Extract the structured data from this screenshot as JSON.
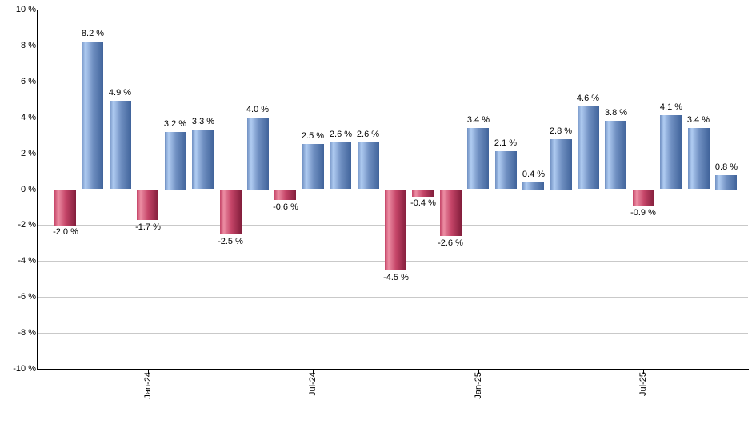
{
  "chart_data": {
    "type": "bar",
    "title": "",
    "xlabel": "",
    "ylabel": "",
    "ylim": [
      -10,
      10
    ],
    "grid": "horizontal",
    "legend": "none",
    "bars": [
      {
        "value": -2.0,
        "label": "-2.0 %"
      },
      {
        "value": 8.2,
        "label": "8.2 %"
      },
      {
        "value": 4.9,
        "label": "4.9 %"
      },
      {
        "value": -1.7,
        "label": "-1.7 %"
      },
      {
        "value": 3.2,
        "label": "3.2 %"
      },
      {
        "value": 3.3,
        "label": "3.3 %"
      },
      {
        "value": -2.5,
        "label": "-2.5 %"
      },
      {
        "value": 4.0,
        "label": "4.0 %"
      },
      {
        "value": -0.6,
        "label": "-0.6 %"
      },
      {
        "value": 2.5,
        "label": "2.5 %"
      },
      {
        "value": 2.6,
        "label": "2.6 %"
      },
      {
        "value": 2.6,
        "label": "2.6 %"
      },
      {
        "value": -4.5,
        "label": "-4.5 %"
      },
      {
        "value": -0.4,
        "label": "-0.4 %"
      },
      {
        "value": -2.6,
        "label": "-2.6 %"
      },
      {
        "value": 3.4,
        "label": "3.4 %"
      },
      {
        "value": 2.1,
        "label": "2.1 %"
      },
      {
        "value": 0.4,
        "label": "0.4 %"
      },
      {
        "value": 2.8,
        "label": "2.8 %"
      },
      {
        "value": 4.6,
        "label": "4.6 %"
      },
      {
        "value": 3.8,
        "label": "3.8 %"
      },
      {
        "value": -0.9,
        "label": "-0.9 %"
      },
      {
        "value": 4.1,
        "label": "4.1 %"
      },
      {
        "value": 3.4,
        "label": "3.4 %"
      },
      {
        "value": 0.8,
        "label": "0.8 %"
      }
    ],
    "x_tick_labels": [
      {
        "bar_index": 3,
        "label": "Jan-24"
      },
      {
        "bar_index": 9,
        "label": "Jul-24"
      },
      {
        "bar_index": 15,
        "label": "Jan-25"
      },
      {
        "bar_index": 21,
        "label": "Jul-25"
      }
    ],
    "y_tick_values": [
      10,
      8,
      6,
      4,
      2,
      0,
      -2,
      -4,
      -6,
      -8,
      -10
    ],
    "y_tick_labels": [
      "10 %",
      "8 %",
      "6 %",
      "4 %",
      "2 %",
      "0 %",
      "-2 %",
      "-4 %",
      "-6 %",
      "-8 %",
      "-10 %"
    ],
    "colors": {
      "positive_light": "#b0ccf2",
      "positive_mid": "#7090c2",
      "positive_dark": "#40639a",
      "negative_light": "#ec8da3",
      "negative_mid": "#c54568",
      "negative_dark": "#821d3b",
      "gridline": "#c9c9c9",
      "axis": "#000000",
      "label_text": "#000000",
      "background": "#ffffff"
    }
  }
}
